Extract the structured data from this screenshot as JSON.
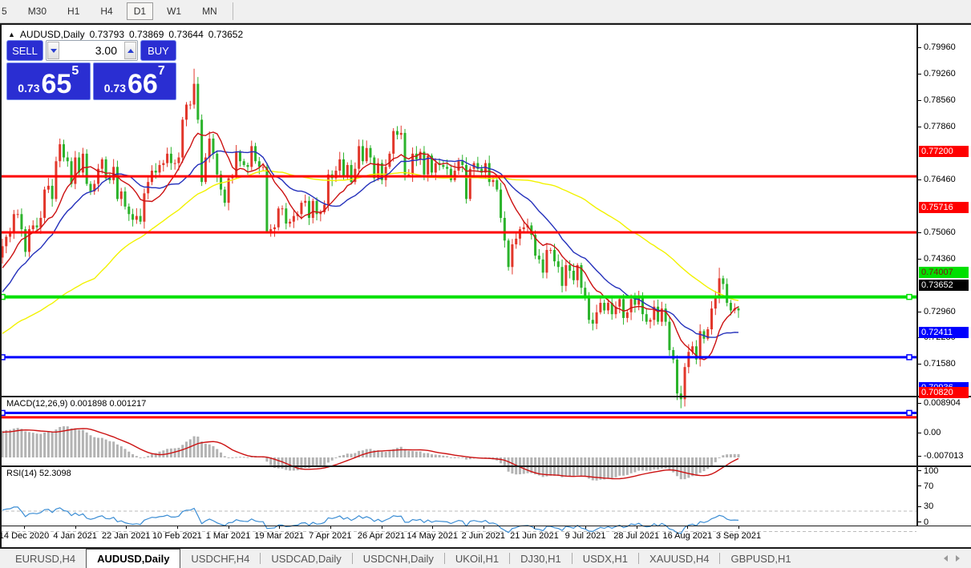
{
  "toolbar": {
    "buttons": [
      "5",
      "M30",
      "H1",
      "H4",
      "D1",
      "W1",
      "MN"
    ],
    "active": "D1"
  },
  "chart_header": {
    "collapse_glyph": "▲",
    "symbol_period": "AUDUSD,Daily",
    "open": "0.73793",
    "high": "0.73869",
    "low": "0.73644",
    "close": "0.73652"
  },
  "trade_panel": {
    "sell_label": "SELL",
    "buy_label": "BUY",
    "volume": "3.00",
    "sell_price": {
      "prefix": "0.73",
      "big": "65",
      "sup": "5"
    },
    "buy_price": {
      "prefix": "0.73",
      "big": "66",
      "sup": "7"
    }
  },
  "price_axis": {
    "ticks": [
      {
        "text": "0.79960",
        "price": 0.7996
      },
      {
        "text": "0.79260",
        "price": 0.7926
      },
      {
        "text": "0.78560",
        "price": 0.7856
      },
      {
        "text": "0.77860",
        "price": 0.7786
      },
      {
        "text": "0.76460",
        "price": 0.7646
      },
      {
        "text": "0.75060",
        "price": 0.7506
      },
      {
        "text": "0.74360",
        "price": 0.7436
      },
      {
        "text": "0.72960",
        "price": 0.7296
      },
      {
        "text": "0.72280",
        "price": 0.7228
      },
      {
        "text": "0.71580",
        "price": 0.7158
      }
    ],
    "badges": [
      {
        "text": "0.77200",
        "price": 0.772,
        "bg": "#fe0000",
        "fg": "#ffffff"
      },
      {
        "text": "0.75716",
        "price": 0.75716,
        "bg": "#fe0000",
        "fg": "#ffffff"
      },
      {
        "text": "0.74007",
        "price": 0.74007,
        "bg": "#00e000",
        "fg": "#7b1414"
      },
      {
        "text": "0.70936",
        "price": 0.70936,
        "bg": "#0000fe",
        "fg": "#ffffff"
      },
      {
        "text": "0.70820",
        "price": 0.7082,
        "bg": "#fe0000",
        "fg": "#ffffff"
      },
      {
        "text": "0.72411",
        "price": 0.72411,
        "bg": "#0000fe",
        "fg": "#ffffff"
      }
    ],
    "current": {
      "text": "0.73652",
      "price": 0.73652,
      "bg": "#000000",
      "fg": "#ffffff"
    }
  },
  "indicators": {
    "macd": {
      "label": "MACD(12,26,9)",
      "value_main": "0.001898",
      "value_signal": "0.001217",
      "axis_labels": [
        {
          "text": "0.008904",
          "value": 0.008904
        },
        {
          "text": "0.00",
          "value": 0
        },
        {
          "text": "-0.007013",
          "value": -0.007013
        }
      ]
    },
    "rsi": {
      "label": "RSI(14)",
      "value": "52.3098",
      "axis_labels": [
        {
          "text": "100",
          "value": 100
        },
        {
          "text": "70",
          "value": 70
        },
        {
          "text": "30",
          "value": 30
        },
        {
          "text": "0",
          "value": 0
        }
      ]
    }
  },
  "date_axis": {
    "labels": [
      "14 Dec 2020",
      "4 Jan 2021",
      "22 Jan 2021",
      "10 Feb 2021",
      "1 Mar 2021",
      "19 Mar 2021",
      "7 Apr 2021",
      "26 Apr 2021",
      "14 May 2021",
      "2 Jun 2021",
      "21 Jun 2021",
      "9 Jul 2021",
      "28 Jul 2021",
      "16 Aug 2021",
      "3 Sep 2021"
    ]
  },
  "tabs": {
    "items": [
      "EURUSD,H4",
      "AUDUSD,Daily",
      "USDCHF,H4",
      "USDCAD,Daily",
      "USDCNH,Daily",
      "UKOil,H1",
      "DJ30,H1",
      "USDX,H1",
      "XAUUSD,H4",
      "GBPUSD,H1"
    ],
    "active_index": 1
  },
  "colors": {
    "candle_up": "#e2362a",
    "candle_down": "#2bb32b",
    "ma_fast": "#cc1111",
    "ma_mid": "#2430bb",
    "ma_slow": "#f2f200",
    "hline_red": "#fe0000",
    "hline_green": "#00e000",
    "hline_blue": "#0000fe",
    "macd_hist": "#b3b3b3",
    "macd_signal": "#cc1111",
    "rsi_line": "#3b8dd4",
    "panel_blue": "#2a2ed2"
  },
  "chart_data": {
    "type": "candlestick_with_indicators",
    "symbol": "AUDUSD",
    "timeframe": "Daily",
    "ohlc_display": {
      "open": 0.73793,
      "high": 0.73869,
      "low": 0.73644,
      "close": 0.73652
    },
    "note_color_convention": "red = up candle, green = down candle",
    "history_closes": [
      0.7105,
      0.713,
      0.712,
      0.704,
      0.7025,
      0.703,
      0.707,
      0.714,
      0.716,
      0.722,
      0.726,
      0.7285,
      0.727,
      0.723,
      0.7265,
      0.73,
      0.7315,
      0.7325,
      0.7295,
      0.731,
      0.7345,
      0.736,
      0.733,
      0.7365,
      0.742,
      0.7445,
      0.7435,
      0.744,
      0.7465,
      0.742,
      0.744,
      0.747,
      0.7505,
      0.753,
      0.7535
    ],
    "closes": [
      0.7535,
      0.756,
      0.757,
      0.762,
      0.762,
      0.758,
      0.752,
      0.758,
      0.759,
      0.7585,
      0.761,
      0.7685,
      0.7695,
      0.766,
      0.776,
      0.7805,
      0.777,
      0.776,
      0.77,
      0.777,
      0.773,
      0.778,
      0.77,
      0.768,
      0.77,
      0.774,
      0.7765,
      0.7715,
      0.771,
      0.7745,
      0.766,
      0.768,
      0.764,
      0.762,
      0.7605,
      0.7615,
      0.76,
      0.7675,
      0.7705,
      0.7735,
      0.773,
      0.775,
      0.7755,
      0.778,
      0.7755,
      0.7755,
      0.777,
      0.787,
      0.791,
      0.791,
      0.7965,
      0.787,
      0.7705,
      0.777,
      0.782,
      0.778,
      0.7725,
      0.7685,
      0.765,
      0.7715,
      0.772,
      0.7785,
      0.776,
      0.775,
      0.7745,
      0.78,
      0.776,
      0.7745,
      0.7745,
      0.7575,
      0.758,
      0.7585,
      0.7635,
      0.7635,
      0.7595,
      0.76,
      0.7615,
      0.762,
      0.765,
      0.7655,
      0.761,
      0.7655,
      0.762,
      0.7625,
      0.7645,
      0.7725,
      0.7715,
      0.7735,
      0.7765,
      0.772,
      0.775,
      0.7705,
      0.774,
      0.78,
      0.776,
      0.7795,
      0.777,
      0.7715,
      0.7755,
      0.771,
      0.7745,
      0.778,
      0.784,
      0.783,
      0.7835,
      0.7725,
      0.7725,
      0.778,
      0.7765,
      0.7785,
      0.7725,
      0.7775,
      0.773,
      0.7755,
      0.775,
      0.7745,
      0.774,
      0.771,
      0.7735,
      0.776,
      0.775,
      0.766,
      0.774,
      0.7755,
      0.774,
      0.773,
      0.7755,
      0.7705,
      0.771,
      0.7685,
      0.761,
      0.755,
      0.748,
      0.754,
      0.7555,
      0.758,
      0.7585,
      0.759,
      0.7565,
      0.751,
      0.75,
      0.7465,
      0.7525,
      0.7525,
      0.7495,
      0.748,
      0.743,
      0.7485,
      0.747,
      0.7445,
      0.7485,
      0.7425,
      0.74,
      0.734,
      0.733,
      0.736,
      0.7385,
      0.7365,
      0.7385,
      0.7355,
      0.7375,
      0.7395,
      0.7345,
      0.736,
      0.7395,
      0.738,
      0.74,
      0.7355,
      0.7335,
      0.734,
      0.7375,
      0.7335,
      0.737,
      0.7335,
      0.726,
      0.7235,
      0.7145,
      0.713,
      0.7215,
      0.7255,
      0.727,
      0.7235,
      0.731,
      0.729,
      0.7315,
      0.737,
      0.74,
      0.745,
      0.7435,
      0.7385,
      0.7365,
      0.737,
      0.73652
    ],
    "overrides": {
      "15": {
        "high": 0.782
      },
      "50": {
        "high": 0.8005
      },
      "177": {
        "low": 0.7106
      },
      "187": {
        "high": 0.7478
      }
    },
    "moving_averages": [
      {
        "period": 60,
        "color": "#f2f200"
      },
      {
        "period": 20,
        "color": "#2430bb"
      },
      {
        "period": 10,
        "color": "#cc1111"
      }
    ],
    "hlines": [
      {
        "price": 0.772,
        "color": "#fe0000",
        "width": 3,
        "handles": false
      },
      {
        "price": 0.75716,
        "color": "#fe0000",
        "width": 3,
        "handles": false
      },
      {
        "price": 0.74007,
        "color": "#00e000",
        "width": 4,
        "handles": true
      },
      {
        "price": 0.72411,
        "color": "#0000fe",
        "width": 3,
        "handles": true
      },
      {
        "price": 0.70936,
        "color": "#0000fe",
        "width": 3,
        "handles": true
      },
      {
        "price": 0.7082,
        "color": "#fe0000",
        "width": 3,
        "handles": false
      }
    ],
    "macd": {
      "fast": 12,
      "slow": 26,
      "signal": 9,
      "main_value": 0.001898,
      "signal_value": 0.001217
    },
    "rsi": {
      "period": 14,
      "value": 52.3098,
      "levels": [
        70,
        30
      ]
    }
  }
}
